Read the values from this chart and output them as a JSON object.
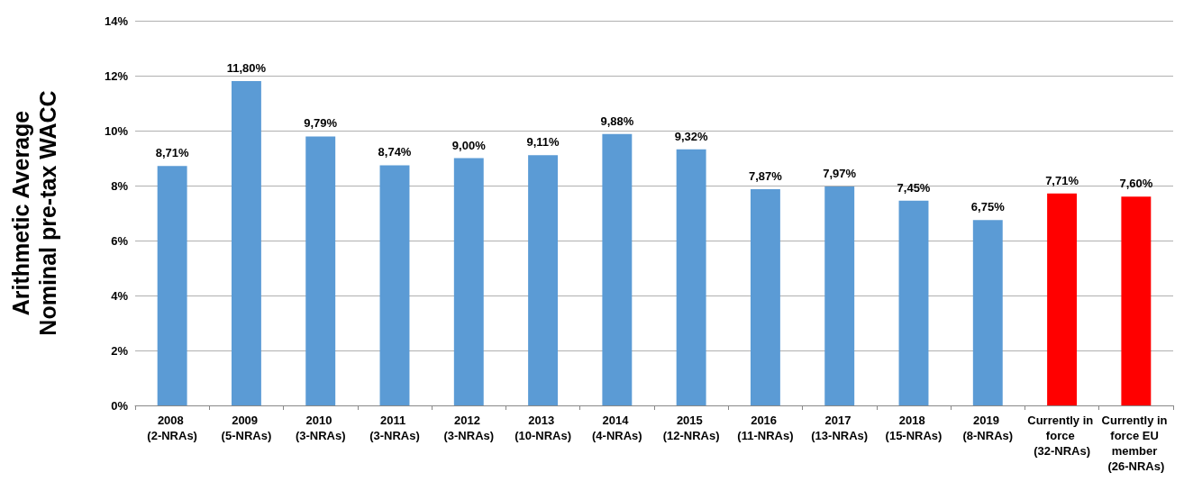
{
  "chart_data": {
    "type": "bar",
    "ylabel": "Arithmetic Average\nNominal pre-tax WACC",
    "categories": [
      "2008 (2-NRAs)",
      "2009 (5-NRAs)",
      "2010 (3-NRAs)",
      "2011 (3-NRAs)",
      "2012 (3-NRAs)",
      "2013 (10-NRAs)",
      "2014 (4-NRAs)",
      "2015 (12-NRAs)",
      "2016 (11-NRAs)",
      "2017 (13-NRAs)",
      "2018 (15-NRAs)",
      "2019 (8-NRAs)",
      "Currently in force (32-NRAs)",
      "Currently in force EU member (26-NRAs)"
    ],
    "values": [
      8.71,
      11.8,
      9.79,
      8.74,
      9.0,
      9.11,
      9.88,
      9.32,
      7.87,
      7.97,
      7.45,
      6.75,
      7.71,
      7.6
    ],
    "value_labels": [
      "8,71%",
      "11,80%",
      "9,79%",
      "8,74%",
      "9,00%",
      "9,11%",
      "9,88%",
      "9,32%",
      "7,87%",
      "7,97%",
      "7,45%",
      "6,75%",
      "7,71%",
      "7,60%"
    ],
    "colors": [
      "#5b9bd5",
      "#5b9bd5",
      "#5b9bd5",
      "#5b9bd5",
      "#5b9bd5",
      "#5b9bd5",
      "#5b9bd5",
      "#5b9bd5",
      "#5b9bd5",
      "#5b9bd5",
      "#5b9bd5",
      "#5b9bd5",
      "#ff0000",
      "#ff0000"
    ],
    "ylim": [
      0,
      14
    ],
    "yticks": [
      {
        "value": 0,
        "label": "0%"
      },
      {
        "value": 2,
        "label": "2%"
      },
      {
        "value": 4,
        "label": "4%"
      },
      {
        "value": 6,
        "label": "6%"
      },
      {
        "value": 8,
        "label": "8%"
      },
      {
        "value": 10,
        "label": "10%"
      },
      {
        "value": 12,
        "label": "12%"
      },
      {
        "value": 14,
        "label": "14%"
      }
    ],
    "grid": true
  }
}
